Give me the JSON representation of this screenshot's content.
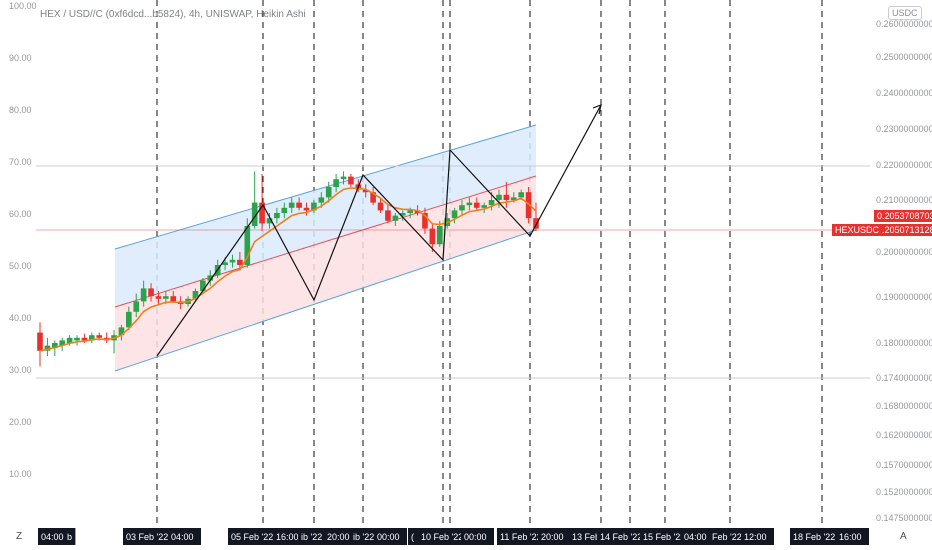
{
  "chart_title": "HEX / USD//C (0xf6dcd...b5824), 4h, UNISWAP, Heikin Ashi",
  "unit_badge": "USDC",
  "symbol_tag": "HEXUSDC",
  "price_tags": [
    "0.2053708703",
    "0.2050713128"
  ],
  "corner_z": "Z",
  "corner_a": "A",
  "colors": {
    "up": "#2ca24a",
    "down": "#e8312f",
    "ma": "#f07f1a",
    "upper_channel_fill": "#dbeafb",
    "lower_channel_fill": "#fde0e3",
    "channel_edge": "#5aa3e0",
    "channel_mid": "#e5505a",
    "axis_text": "#9598a1",
    "xaxis_label_bg": "#131722"
  },
  "chart_data": {
    "type": "candlestick",
    "left_axis_ticks": [
      "100.00",
      "90.00",
      "80.00",
      "70.00",
      "60.00",
      "50.00",
      "40.00",
      "30.00",
      "20.00",
      "10.00"
    ],
    "right_axis_ticks": [
      "0.2600000000",
      "0.2500000000",
      "0.2400000000",
      "0.2300000000",
      "0.2200000000",
      "0.2100000000",
      "0.2000000000",
      "0.1900000000",
      "0.1800000000",
      "0.1740000000",
      "0.1680000000",
      "0.1620000000",
      "0.1570000000",
      "0.1520000000",
      "0.1475000000"
    ],
    "x_labels": [
      "04:00",
      "b",
      "03 Feb '22",
      "04:00",
      "05 Feb '22",
      "16:00",
      "ib '22",
      "20:00",
      "ib '22",
      "00:00",
      "(",
      "10 Feb '22",
      "00:00",
      "11 Feb '22",
      "20:00",
      "13 Feb '22",
      "14 Feb '22",
      "15 Feb '22",
      "04:00",
      "Feb '22",
      "12:00",
      "18 Feb '22",
      "16:00"
    ],
    "candles": [
      {
        "o": 37.0,
        "h": 39.0,
        "l": 30.5,
        "c": 33.5
      },
      {
        "o": 33.5,
        "h": 36.0,
        "l": 32.5,
        "c": 34.5
      },
      {
        "o": 34.0,
        "h": 35.5,
        "l": 32.5,
        "c": 35.0
      },
      {
        "o": 34.5,
        "h": 36.0,
        "l": 33.5,
        "c": 35.5
      },
      {
        "o": 35.0,
        "h": 36.5,
        "l": 34.5,
        "c": 36.0
      },
      {
        "o": 35.5,
        "h": 36.5,
        "l": 34.5,
        "c": 36.0
      },
      {
        "o": 36.0,
        "h": 36.8,
        "l": 35.0,
        "c": 35.5
      },
      {
        "o": 35.5,
        "h": 37.0,
        "l": 35.0,
        "c": 36.5
      },
      {
        "o": 36.5,
        "h": 37.0,
        "l": 35.5,
        "c": 36.0
      },
      {
        "o": 36.0,
        "h": 37.0,
        "l": 35.0,
        "c": 35.5
      },
      {
        "o": 35.5,
        "h": 37.5,
        "l": 33.0,
        "c": 36.5
      },
      {
        "o": 36.5,
        "h": 38.5,
        "l": 35.5,
        "c": 38.0
      },
      {
        "o": 38.0,
        "h": 42.0,
        "l": 37.5,
        "c": 41.0
      },
      {
        "o": 41.0,
        "h": 44.5,
        "l": 40.0,
        "c": 43.0
      },
      {
        "o": 43.0,
        "h": 47.0,
        "l": 42.0,
        "c": 45.5
      },
      {
        "o": 45.5,
        "h": 46.5,
        "l": 43.0,
        "c": 44.0
      },
      {
        "o": 44.0,
        "h": 45.0,
        "l": 42.5,
        "c": 43.5
      },
      {
        "o": 43.5,
        "h": 45.0,
        "l": 42.5,
        "c": 44.0
      },
      {
        "o": 44.0,
        "h": 45.0,
        "l": 43.0,
        "c": 43.0
      },
      {
        "o": 43.0,
        "h": 44.0,
        "l": 41.5,
        "c": 42.5
      },
      {
        "o": 42.5,
        "h": 44.0,
        "l": 42.0,
        "c": 43.5
      },
      {
        "o": 43.5,
        "h": 45.5,
        "l": 43.0,
        "c": 45.0
      },
      {
        "o": 45.0,
        "h": 47.5,
        "l": 44.5,
        "c": 47.0
      },
      {
        "o": 47.0,
        "h": 49.0,
        "l": 46.0,
        "c": 48.0
      },
      {
        "o": 48.0,
        "h": 51.0,
        "l": 47.5,
        "c": 50.0
      },
      {
        "o": 50.0,
        "h": 51.5,
        "l": 49.0,
        "c": 50.5
      },
      {
        "o": 50.5,
        "h": 52.0,
        "l": 49.5,
        "c": 51.0
      },
      {
        "o": 51.0,
        "h": 52.5,
        "l": 49.5,
        "c": 50.0
      },
      {
        "o": 50.0,
        "h": 59.0,
        "l": 49.5,
        "c": 57.5
      },
      {
        "o": 57.5,
        "h": 68.0,
        "l": 57.0,
        "c": 62.0
      },
      {
        "o": 62.0,
        "h": 67.5,
        "l": 56.5,
        "c": 58.0
      },
      {
        "o": 58.0,
        "h": 60.0,
        "l": 57.0,
        "c": 59.0
      },
      {
        "o": 59.0,
        "h": 61.0,
        "l": 58.0,
        "c": 60.0
      },
      {
        "o": 60.0,
        "h": 62.0,
        "l": 59.0,
        "c": 61.0
      },
      {
        "o": 61.0,
        "h": 63.0,
        "l": 60.0,
        "c": 62.0
      },
      {
        "o": 62.0,
        "h": 63.0,
        "l": 60.5,
        "c": 61.0
      },
      {
        "o": 61.0,
        "h": 62.0,
        "l": 59.5,
        "c": 60.5
      },
      {
        "o": 60.5,
        "h": 62.5,
        "l": 60.0,
        "c": 62.0
      },
      {
        "o": 62.0,
        "h": 64.0,
        "l": 61.0,
        "c": 63.0
      },
      {
        "o": 63.0,
        "h": 66.0,
        "l": 62.0,
        "c": 65.0
      },
      {
        "o": 65.0,
        "h": 67.5,
        "l": 64.0,
        "c": 66.5
      },
      {
        "o": 66.5,
        "h": 68.0,
        "l": 65.5,
        "c": 67.0
      },
      {
        "o": 67.0,
        "h": 67.5,
        "l": 65.0,
        "c": 65.5
      },
      {
        "o": 65.5,
        "h": 66.5,
        "l": 64.0,
        "c": 64.5
      },
      {
        "o": 64.5,
        "h": 65.5,
        "l": 63.0,
        "c": 64.0
      },
      {
        "o": 64.0,
        "h": 65.0,
        "l": 61.5,
        "c": 62.0
      },
      {
        "o": 62.0,
        "h": 63.0,
        "l": 60.0,
        "c": 60.5
      },
      {
        "o": 60.5,
        "h": 61.5,
        "l": 58.0,
        "c": 58.5
      },
      {
        "o": 58.5,
        "h": 60.0,
        "l": 57.5,
        "c": 59.5
      },
      {
        "o": 59.5,
        "h": 60.5,
        "l": 58.5,
        "c": 60.0
      },
      {
        "o": 60.0,
        "h": 61.0,
        "l": 59.0,
        "c": 60.5
      },
      {
        "o": 60.5,
        "h": 61.5,
        "l": 59.5,
        "c": 60.0
      },
      {
        "o": 60.0,
        "h": 61.0,
        "l": 56.0,
        "c": 57.0
      },
      {
        "o": 57.0,
        "h": 58.0,
        "l": 52.5,
        "c": 54.0
      },
      {
        "o": 54.0,
        "h": 58.5,
        "l": 53.5,
        "c": 57.5
      },
      {
        "o": 57.5,
        "h": 60.0,
        "l": 57.0,
        "c": 59.0
      },
      {
        "o": 59.0,
        "h": 61.0,
        "l": 58.0,
        "c": 60.5
      },
      {
        "o": 60.5,
        "h": 62.5,
        "l": 59.5,
        "c": 61.5
      },
      {
        "o": 61.5,
        "h": 63.0,
        "l": 60.5,
        "c": 62.0
      },
      {
        "o": 62.0,
        "h": 63.0,
        "l": 60.5,
        "c": 61.0
      },
      {
        "o": 61.0,
        "h": 62.0,
        "l": 60.0,
        "c": 61.5
      },
      {
        "o": 61.5,
        "h": 64.0,
        "l": 60.5,
        "c": 62.5
      },
      {
        "o": 62.5,
        "h": 64.5,
        "l": 61.0,
        "c": 63.5
      },
      {
        "o": 63.5,
        "h": 66.0,
        "l": 61.0,
        "c": 62.5
      },
      {
        "o": 62.5,
        "h": 64.0,
        "l": 62.0,
        "c": 63.0
      },
      {
        "o": 63.0,
        "h": 64.5,
        "l": 62.5,
        "c": 64.0
      },
      {
        "o": 64.0,
        "h": 65.0,
        "l": 58.0,
        "c": 59.0
      },
      {
        "o": 59.0,
        "h": 62.0,
        "l": 56.5,
        "c": 57.0
      }
    ]
  }
}
